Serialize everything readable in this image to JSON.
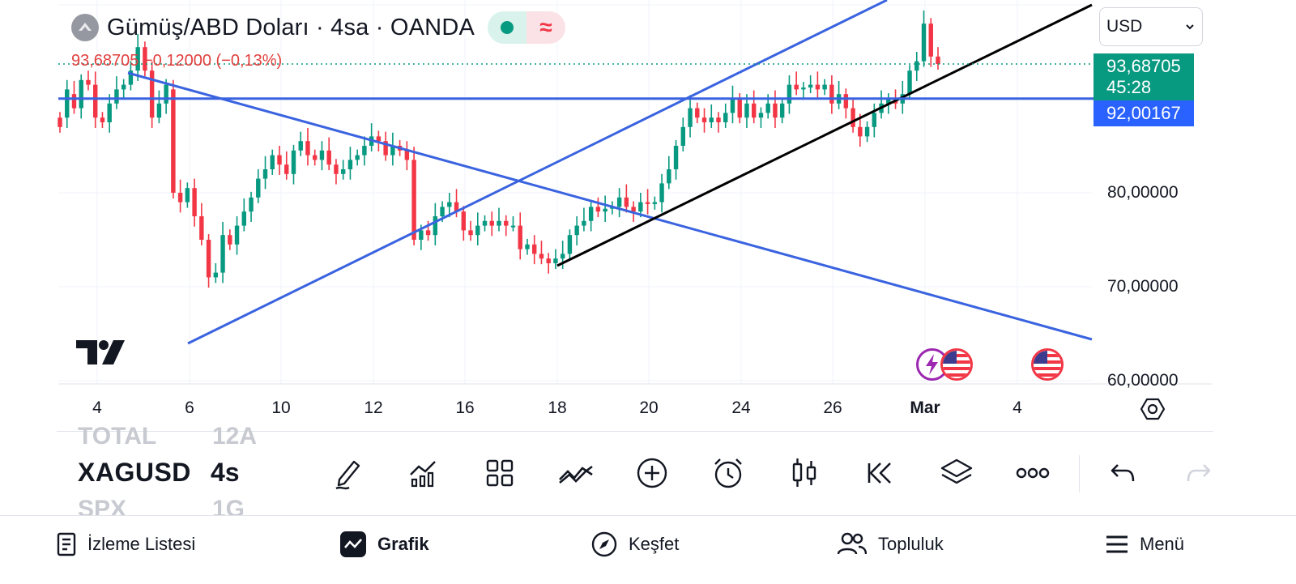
{
  "header": {
    "title": "Gümüş/ABD Doları · 4sa · OANDA",
    "change_text": "93,68705 −0,12000 (−0,13%)",
    "badge_wave": "≈"
  },
  "currency_select": {
    "value": "USD"
  },
  "price_labels": {
    "last_price": "93,68705",
    "countdown": "45:28",
    "line_price": "92,00167"
  },
  "chart_data": {
    "type": "candlestick",
    "y_ticks": [
      "80,00000",
      "70,00000",
      "60,00000"
    ],
    "ylim": [
      59,
      105
    ],
    "x_ticks": [
      "4",
      "6",
      "10",
      "12",
      "16",
      "18",
      "20",
      "24",
      "26",
      "Mar",
      "4"
    ],
    "last": 93.68705,
    "horizontal_line": 92.00167,
    "candles": [
      {
        "o": 88.0,
        "c": 87.0
      },
      {
        "o": 88.0,
        "c": 91.0
      },
      {
        "o": 90.5,
        "c": 89.0
      },
      {
        "o": 89.0,
        "c": 92.0
      },
      {
        "o": 92.0,
        "c": 91.5
      },
      {
        "o": 91.5,
        "c": 88.0
      },
      {
        "o": 88.0,
        "c": 87.5
      },
      {
        "o": 87.5,
        "c": 89.5
      },
      {
        "o": 89.5,
        "c": 91.0
      },
      {
        "o": 91.0,
        "c": 91.5
      },
      {
        "o": 91.5,
        "c": 93.0
      },
      {
        "o": 93.0,
        "c": 95.5
      },
      {
        "o": 95.5,
        "c": 93.0
      },
      {
        "o": 93.0,
        "c": 88.0
      },
      {
        "o": 88.0,
        "c": 89.5
      },
      {
        "o": 89.5,
        "c": 91.5
      },
      {
        "o": 91.0,
        "c": 80.0
      },
      {
        "o": 80.0,
        "c": 79.0
      },
      {
        "o": 79.0,
        "c": 80.5
      },
      {
        "o": 80.5,
        "c": 77.5
      },
      {
        "o": 77.5,
        "c": 75.0
      },
      {
        "o": 75.0,
        "c": 71.0
      },
      {
        "o": 71.0,
        "c": 71.5
      },
      {
        "o": 71.5,
        "c": 75.5
      },
      {
        "o": 75.5,
        "c": 74.5
      },
      {
        "o": 74.5,
        "c": 76.5
      },
      {
        "o": 76.5,
        "c": 78.0
      },
      {
        "o": 78.0,
        "c": 79.5
      },
      {
        "o": 79.5,
        "c": 81.5
      },
      {
        "o": 81.5,
        "c": 82.5
      },
      {
        "o": 82.5,
        "c": 84.0
      },
      {
        "o": 84.0,
        "c": 83.0
      },
      {
        "o": 83.0,
        "c": 82.0
      },
      {
        "o": 82.0,
        "c": 84.5
      },
      {
        "o": 84.5,
        "c": 85.5
      },
      {
        "o": 85.5,
        "c": 84.0
      },
      {
        "o": 84.0,
        "c": 83.5
      },
      {
        "o": 83.5,
        "c": 84.5
      },
      {
        "o": 84.5,
        "c": 83.0
      },
      {
        "o": 83.0,
        "c": 82.0
      },
      {
        "o": 82.0,
        "c": 82.5
      },
      {
        "o": 82.5,
        "c": 83.5
      },
      {
        "o": 83.5,
        "c": 84.0
      },
      {
        "o": 84.0,
        "c": 85.0
      },
      {
        "o": 85.0,
        "c": 86.0
      },
      {
        "o": 86.0,
        "c": 85.5
      },
      {
        "o": 85.5,
        "c": 84.0
      },
      {
        "o": 84.0,
        "c": 85.0
      },
      {
        "o": 85.0,
        "c": 84.5
      },
      {
        "o": 84.5,
        "c": 83.5
      },
      {
        "o": 83.5,
        "c": 75.0
      },
      {
        "o": 75.0,
        "c": 76.0
      },
      {
        "o": 76.0,
        "c": 75.5
      },
      {
        "o": 75.5,
        "c": 77.5
      },
      {
        "o": 77.5,
        "c": 78.5
      },
      {
        "o": 78.5,
        "c": 79.0
      },
      {
        "o": 79.0,
        "c": 78.0
      },
      {
        "o": 78.0,
        "c": 76.0
      },
      {
        "o": 76.0,
        "c": 75.5
      },
      {
        "o": 75.5,
        "c": 76.5
      },
      {
        "o": 76.5,
        "c": 77.0
      },
      {
        "o": 77.0,
        "c": 76.5
      },
      {
        "o": 76.5,
        "c": 77.0
      },
      {
        "o": 77.0,
        "c": 76.5
      },
      {
        "o": 76.5,
        "c": 76.5
      },
      {
        "o": 76.5,
        "c": 74.0
      },
      {
        "o": 74.0,
        "c": 74.5
      },
      {
        "o": 74.5,
        "c": 73.5
      },
      {
        "o": 73.5,
        "c": 73.0
      },
      {
        "o": 73.0,
        "c": 72.5
      },
      {
        "o": 72.5,
        "c": 73.0
      },
      {
        "o": 73.0,
        "c": 73.5
      },
      {
        "o": 73.5,
        "c": 75.5
      },
      {
        "o": 75.5,
        "c": 76.5
      },
      {
        "o": 76.5,
        "c": 77.0
      },
      {
        "o": 77.0,
        "c": 78.5
      },
      {
        "o": 78.5,
        "c": 78.0
      },
      {
        "o": 78.0,
        "c": 78.3
      },
      {
        "o": 78.3,
        "c": 78.5
      },
      {
        "o": 78.5,
        "c": 79.5
      },
      {
        "o": 79.5,
        "c": 78.5
      },
      {
        "o": 78.5,
        "c": 78.0
      },
      {
        "o": 78.0,
        "c": 79.0
      },
      {
        "o": 79.0,
        "c": 78.8
      },
      {
        "o": 78.8,
        "c": 79.0
      },
      {
        "o": 79.0,
        "c": 81.0
      },
      {
        "o": 81.0,
        "c": 82.5
      },
      {
        "o": 82.5,
        "c": 85.0
      },
      {
        "o": 85.0,
        "c": 87.0
      },
      {
        "o": 87.0,
        "c": 89.0
      },
      {
        "o": 89.0,
        "c": 88.0
      },
      {
        "o": 88.0,
        "c": 87.5
      },
      {
        "o": 87.5,
        "c": 88.0
      },
      {
        "o": 88.0,
        "c": 87.5
      },
      {
        "o": 87.5,
        "c": 88.5
      },
      {
        "o": 88.5,
        "c": 90.0
      },
      {
        "o": 90.0,
        "c": 88.0
      },
      {
        "o": 88.0,
        "c": 89.5
      },
      {
        "o": 89.5,
        "c": 88.0
      },
      {
        "o": 88.0,
        "c": 88.5
      },
      {
        "o": 88.5,
        "c": 89.5
      },
      {
        "o": 89.5,
        "c": 88.0
      },
      {
        "o": 88.0,
        "c": 89.5
      },
      {
        "o": 89.5,
        "c": 91.5
      },
      {
        "o": 91.5,
        "c": 91.0
      },
      {
        "o": 91.0,
        "c": 91.2
      },
      {
        "o": 91.2,
        "c": 91.5
      },
      {
        "o": 91.5,
        "c": 91.0
      },
      {
        "o": 91.0,
        "c": 91.5
      },
      {
        "o": 91.5,
        "c": 89.5
      },
      {
        "o": 89.5,
        "c": 90.5
      },
      {
        "o": 90.5,
        "c": 89.0
      },
      {
        "o": 89.0,
        "c": 87.0
      },
      {
        "o": 87.0,
        "c": 86.0
      },
      {
        "o": 86.0,
        "c": 87.0
      },
      {
        "o": 87.0,
        "c": 88.5
      },
      {
        "o": 88.5,
        "c": 89.5
      },
      {
        "o": 89.5,
        "c": 90.0
      },
      {
        "o": 90.0,
        "c": 89.5
      },
      {
        "o": 89.5,
        "c": 90.5
      },
      {
        "o": 90.5,
        "c": 93.0
      },
      {
        "o": 93.0,
        "c": 94.0
      },
      {
        "o": 94.0,
        "c": 98.0
      },
      {
        "o": 98.0,
        "c": 94.5
      },
      {
        "o": 94.5,
        "c": 93.7
      }
    ],
    "trendlines": [
      {
        "name": "upper-channel-line",
        "color": "#3a63e0"
      },
      {
        "name": "descending-line",
        "color": "#3a63e0"
      },
      {
        "name": "support-line",
        "color": "#000000"
      },
      {
        "name": "horizontal-line",
        "color": "#3a63e0"
      }
    ]
  },
  "toolbar": {
    "symbol": "XAGUSD",
    "timeframe": "4s",
    "ghost_above_symbol": "TOTAL",
    "ghost_above_tf": "12A",
    "ghost_below_symbol": "SPX",
    "ghost_below_tf": "1G"
  },
  "bottom_nav": {
    "watchlist": "İzleme Listesi",
    "chart": "Grafik",
    "explore": "Keşfet",
    "community": "Topluluk",
    "menu": "Menü"
  },
  "colors": {
    "up": "#089981",
    "down": "#f23645",
    "line_blue": "#3a63e0",
    "price_blue": "#2962ff"
  }
}
